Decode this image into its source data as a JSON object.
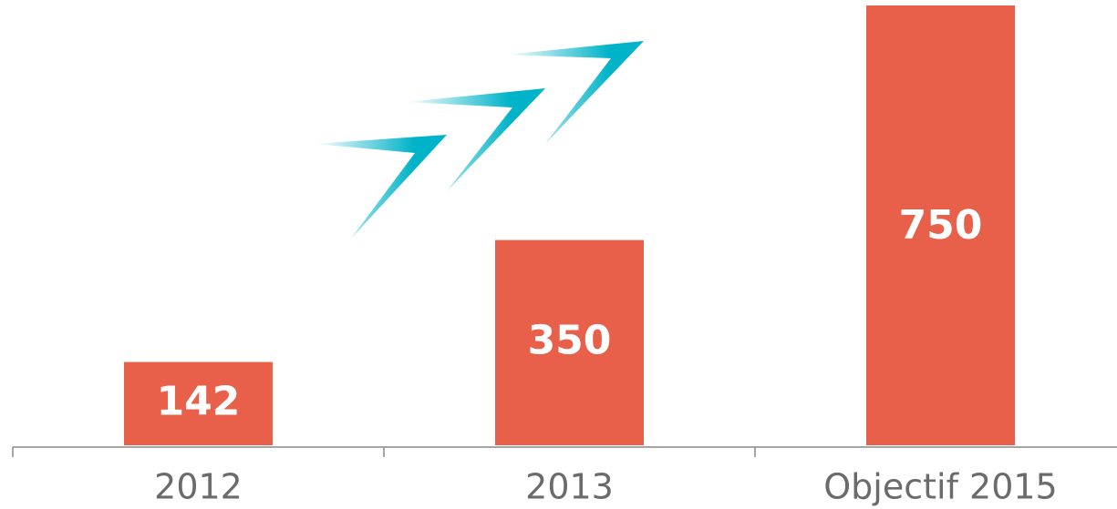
{
  "chart_data": {
    "type": "bar",
    "categories": [
      "2012",
      "2013",
      "Objectif 2015"
    ],
    "values": [
      142,
      350,
      750
    ],
    "color": "#e8604a"
  }
}
